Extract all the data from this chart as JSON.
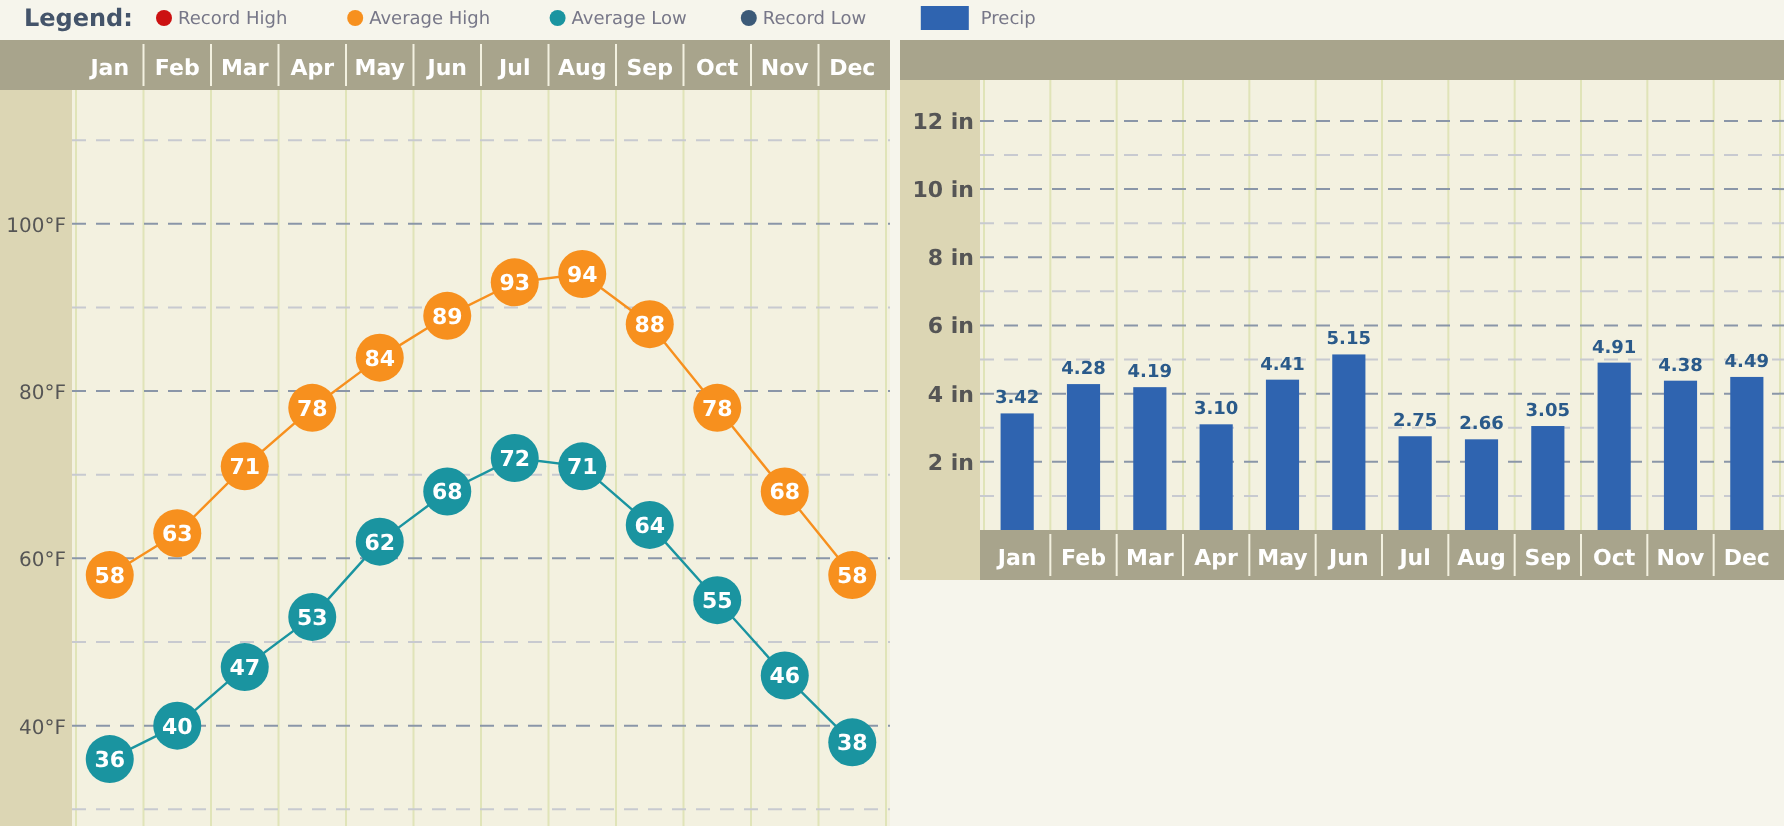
{
  "chart_data": [
    {
      "type": "line",
      "legend_title": "Legend:",
      "legend": "top",
      "marker": "circle",
      "data_labels": true,
      "grid": "y",
      "categories": [
        "Jan",
        "Feb",
        "Mar",
        "Apr",
        "May",
        "Jun",
        "Jul",
        "Aug",
        "Sep",
        "Oct",
        "Nov",
        "Dec"
      ],
      "ylim": [
        28,
        116
      ],
      "yticks": [
        {
          "value": 30,
          "label": null
        },
        {
          "value": 40,
          "label": "40°F"
        },
        {
          "value": 50,
          "label": null
        },
        {
          "value": 60,
          "label": "60°F"
        },
        {
          "value": 70,
          "label": null
        },
        {
          "value": 80,
          "label": "80°F"
        },
        {
          "value": 90,
          "label": null
        },
        {
          "value": 100,
          "label": "100°F"
        },
        {
          "value": 110,
          "label": null
        }
      ],
      "series": [
        {
          "name": "Record High",
          "color": "#cc1111",
          "values": [
            null,
            null,
            null,
            null,
            null,
            null,
            null,
            null,
            null,
            null,
            null,
            null
          ]
        },
        {
          "name": "Average High",
          "color": "#f7901e",
          "values": [
            58,
            63,
            71,
            78,
            84,
            89,
            93,
            94,
            88,
            78,
            68,
            58
          ]
        },
        {
          "name": "Average Low",
          "color": "#1a94a0",
          "values": [
            36,
            40,
            47,
            53,
            62,
            68,
            72,
            71,
            64,
            55,
            46,
            38
          ]
        },
        {
          "name": "Record Low",
          "color": "#3c5a78",
          "values": [
            null,
            null,
            null,
            null,
            null,
            null,
            null,
            null,
            null,
            null,
            null,
            null
          ]
        }
      ]
    },
    {
      "type": "bar",
      "legend": "top",
      "data_labels": true,
      "grid": "y",
      "categories": [
        "Jan",
        "Feb",
        "Mar",
        "Apr",
        "May",
        "Jun",
        "Jul",
        "Aug",
        "Sep",
        "Oct",
        "Nov",
        "Dec"
      ],
      "ylim": [
        0,
        13.2
      ],
      "yticks": [
        {
          "value": 1,
          "label": null
        },
        {
          "value": 2,
          "label": "2 in"
        },
        {
          "value": 3,
          "label": null
        },
        {
          "value": 4,
          "label": "4 in"
        },
        {
          "value": 5,
          "label": null
        },
        {
          "value": 6,
          "label": "6 in"
        },
        {
          "value": 7,
          "label": null
        },
        {
          "value": 8,
          "label": "8 in"
        },
        {
          "value": 9,
          "label": null
        },
        {
          "value": 10,
          "label": "10 in"
        },
        {
          "value": 11,
          "label": null
        },
        {
          "value": 12,
          "label": "12 in"
        }
      ],
      "series": [
        {
          "name": "Precip",
          "color": "#2f64b0",
          "values": [
            3.42,
            4.28,
            4.19,
            3.1,
            4.41,
            5.15,
            2.75,
            2.66,
            3.05,
            4.91,
            4.38,
            4.49
          ],
          "value_labels": [
            "3.42",
            "4.28",
            "4.19",
            "3.10",
            "4.41",
            "5.15",
            "2.75",
            "2.66",
            "3.05",
            "4.91",
            "4.38",
            "4.49"
          ]
        }
      ]
    }
  ]
}
